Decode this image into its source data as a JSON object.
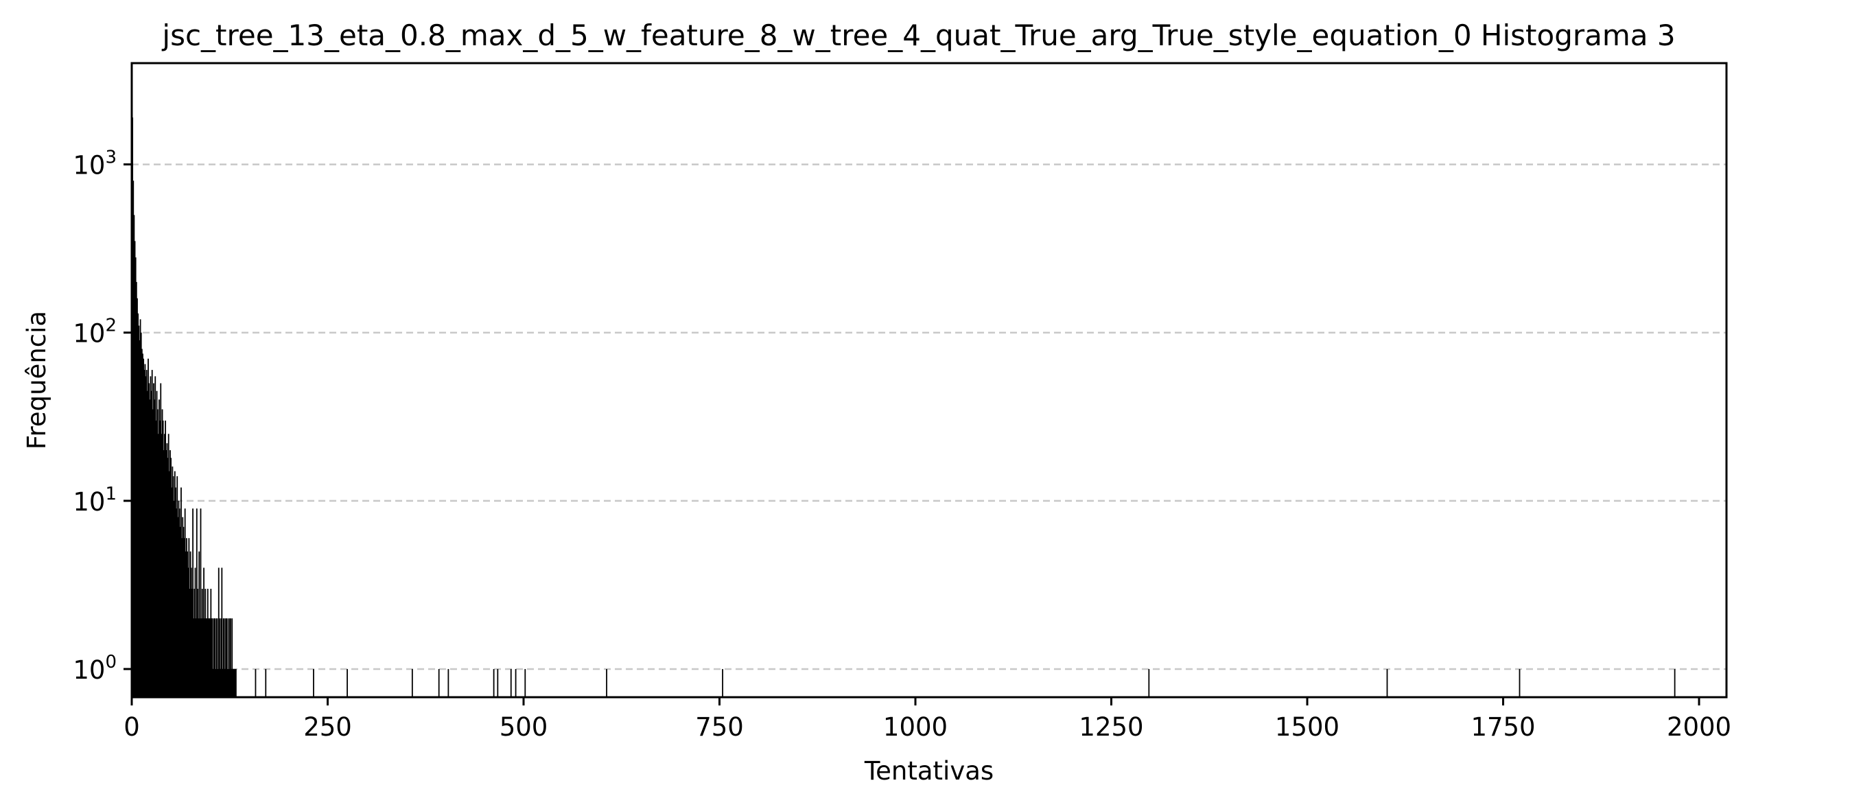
{
  "chart_data": {
    "type": "bar",
    "title": "jsc_tree_13_eta_0.8_max_d_5_w_feature_8_w_tree_4_quat_True_arg_True_style_equation_0 Histograma 3",
    "xlabel": "Tentativas",
    "ylabel": "Frequência",
    "yscale": "log",
    "xlim": [
      0,
      2035
    ],
    "ylim": [
      0.68,
      4000
    ],
    "grid": "y dashed",
    "xticks": [
      0,
      250,
      500,
      750,
      1000,
      1250,
      1500,
      1750,
      2000
    ],
    "xtick_labels": [
      "0",
      "250",
      "500",
      "750",
      "1000",
      "1250",
      "1500",
      "1750",
      "2000"
    ],
    "yticks": [
      {
        "value": 1,
        "base": "10",
        "exp": "0"
      },
      {
        "value": 10,
        "base": "10",
        "exp": "1"
      },
      {
        "value": 100,
        "base": "10",
        "exp": "2"
      },
      {
        "value": 1000,
        "base": "10",
        "exp": "3"
      }
    ],
    "bar_color": "#000000",
    "x": [
      1,
      2,
      3,
      4,
      5,
      6,
      7,
      8,
      9,
      10,
      11,
      12,
      13,
      14,
      15,
      16,
      17,
      18,
      19,
      20,
      21,
      22,
      23,
      24,
      25,
      26,
      27,
      28,
      29,
      30,
      31,
      32,
      33,
      34,
      35,
      36,
      37,
      38,
      39,
      40,
      41,
      42,
      43,
      44,
      45,
      46,
      47,
      48,
      49,
      50,
      51,
      52,
      53,
      54,
      55,
      56,
      57,
      58,
      59,
      60,
      61,
      62,
      63,
      64,
      65,
      66,
      67,
      68,
      69,
      70,
      71,
      72,
      73,
      74,
      75,
      76,
      77,
      78,
      79,
      80,
      81,
      82,
      83,
      84,
      85,
      86,
      87,
      88,
      89,
      90,
      91,
      92,
      93,
      94,
      95,
      96,
      97,
      98,
      99,
      100,
      101,
      102,
      103,
      104,
      105,
      106,
      107,
      108,
      109,
      110,
      111,
      112,
      113,
      114,
      115,
      116,
      117,
      118,
      119,
      120,
      121,
      122,
      123,
      124,
      125,
      126,
      127,
      128,
      129,
      130,
      131,
      132,
      133,
      158,
      171,
      232,
      275,
      358,
      392,
      404,
      462,
      467,
      484,
      490,
      502,
      606,
      754,
      1298,
      1602,
      1771,
      1969
    ],
    "values": [
      1900,
      800,
      500,
      350,
      280,
      200,
      160,
      130,
      110,
      90,
      120,
      100,
      80,
      75,
      70,
      60,
      65,
      55,
      60,
      45,
      70,
      50,
      40,
      55,
      45,
      60,
      35,
      50,
      40,
      55,
      30,
      45,
      35,
      25,
      40,
      30,
      50,
      25,
      35,
      30,
      20,
      25,
      30,
      20,
      22,
      18,
      25,
      15,
      20,
      18,
      12,
      16,
      14,
      10,
      15,
      12,
      9,
      14,
      8,
      10,
      9,
      7,
      12,
      6,
      8,
      7,
      6,
      9,
      5,
      6,
      5,
      4,
      6,
      3,
      5,
      4,
      3,
      9,
      2,
      3,
      4,
      2,
      9,
      3,
      2,
      5,
      2,
      9,
      2,
      3,
      2,
      4,
      2,
      3,
      2,
      2,
      3,
      2,
      2,
      2,
      3,
      2,
      2,
      1,
      2,
      2,
      1,
      2,
      2,
      1,
      4,
      2,
      1,
      2,
      4,
      1,
      2,
      2,
      1,
      2,
      2,
      1,
      2,
      1,
      2,
      2,
      1,
      2,
      1,
      1,
      1,
      1,
      1,
      1,
      1,
      1,
      1,
      1,
      1,
      1,
      1,
      1,
      1,
      1,
      1,
      1,
      1,
      1,
      1,
      1,
      1
    ]
  }
}
